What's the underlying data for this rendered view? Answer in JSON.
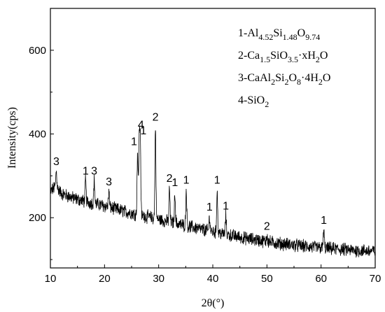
{
  "chart_data": {
    "type": "line",
    "title": "",
    "xlabel": "2θ(°)",
    "ylabel": "Intensity(cps)",
    "xlim": [
      10,
      70
    ],
    "ylim": [
      80,
      700
    ],
    "x_ticks": [
      10,
      20,
      30,
      40,
      50,
      60,
      70
    ],
    "y_ticks": [
      200,
      400,
      600
    ],
    "grid": false,
    "legend_position": "top-right",
    "legend": [
      {
        "prefix": "1-Al",
        "parts": [
          [
            "4.52",
            "sub"
          ],
          [
            "Si",
            "n"
          ],
          [
            "1.48",
            "sub"
          ],
          [
            "O",
            "n"
          ],
          [
            "9.74",
            "sub"
          ]
        ]
      },
      {
        "prefix": "2-Ca",
        "parts": [
          [
            "1.5",
            "sub"
          ],
          [
            "SiO",
            "n"
          ],
          [
            "3.5",
            "sub"
          ],
          [
            "·xH",
            "n"
          ],
          [
            "2",
            "sub"
          ],
          [
            "O",
            "n"
          ]
        ]
      },
      {
        "prefix": "3-CaAl",
        "parts": [
          [
            "2",
            "sub"
          ],
          [
            "Si",
            "n"
          ],
          [
            "2",
            "sub"
          ],
          [
            "O",
            "n"
          ],
          [
            "8",
            "sub"
          ],
          [
            "·4H",
            "n"
          ],
          [
            "2",
            "sub"
          ],
          [
            "O",
            "n"
          ]
        ]
      },
      {
        "prefix": "4-SiO",
        "parts": [
          [
            "2",
            "sub"
          ]
        ]
      }
    ],
    "background_points": [
      [
        10,
        262
      ],
      [
        11,
        276
      ],
      [
        12,
        258
      ],
      [
        14,
        248
      ],
      [
        16,
        240
      ],
      [
        18,
        234
      ],
      [
        20,
        228
      ],
      [
        22,
        221
      ],
      [
        24,
        214
      ],
      [
        26,
        208
      ],
      [
        28,
        202
      ],
      [
        30,
        196
      ],
      [
        32,
        190
      ],
      [
        34,
        184
      ],
      [
        36,
        178
      ],
      [
        38,
        172
      ],
      [
        40,
        166
      ],
      [
        42,
        161
      ],
      [
        44,
        156
      ],
      [
        46,
        151
      ],
      [
        48,
        147
      ],
      [
        50,
        143
      ],
      [
        52,
        139
      ],
      [
        54,
        136
      ],
      [
        56,
        133
      ],
      [
        58,
        130
      ],
      [
        60,
        128
      ],
      [
        62,
        126
      ],
      [
        64,
        124
      ],
      [
        66,
        122
      ],
      [
        68,
        121
      ],
      [
        70,
        120
      ]
    ],
    "noise_amplitude": 14,
    "peaks": [
      {
        "x": 11.1,
        "y": 312,
        "label": "3"
      },
      {
        "x": 16.5,
        "y": 290,
        "label": "1"
      },
      {
        "x": 18.1,
        "y": 290,
        "label": "3"
      },
      {
        "x": 20.8,
        "y": 264,
        "label": "3"
      },
      {
        "x": 26.1,
        "y": 360,
        "label": "1"
      },
      {
        "x": 26.6,
        "y": 400,
        "label": "4"
      },
      {
        "x": 26.4,
        "y": 386,
        "label": "1"
      },
      {
        "x": 29.4,
        "y": 418,
        "label": "2"
      },
      {
        "x": 32.0,
        "y": 272,
        "label": "2"
      },
      {
        "x": 33.0,
        "y": 262,
        "label": "1"
      },
      {
        "x": 35.1,
        "y": 268,
        "label": "1"
      },
      {
        "x": 39.4,
        "y": 204,
        "label": "1"
      },
      {
        "x": 40.8,
        "y": 268,
        "label": "1"
      },
      {
        "x": 42.4,
        "y": 206,
        "label": "1"
      },
      {
        "x": 50.0,
        "y": 158,
        "label": "2"
      },
      {
        "x": 60.5,
        "y": 172,
        "label": "1"
      }
    ]
  }
}
